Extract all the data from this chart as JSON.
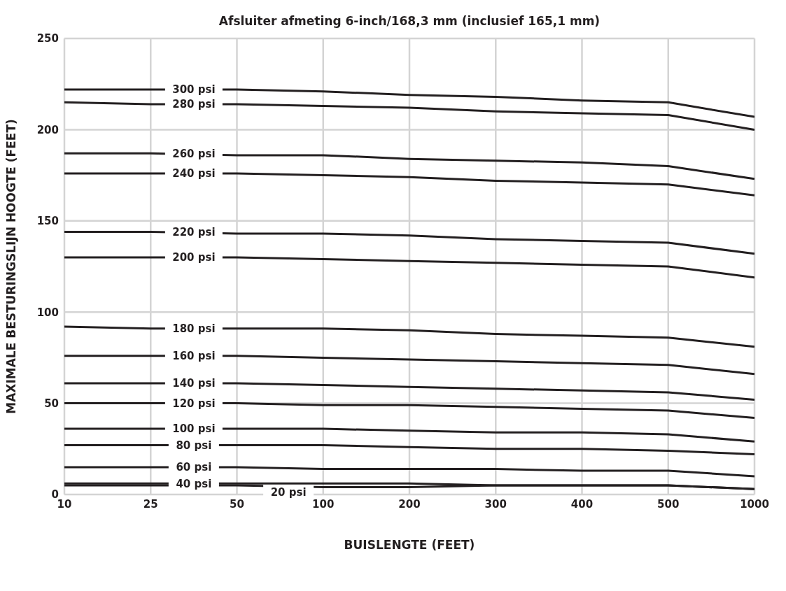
{
  "chart_data": {
    "type": "line",
    "title": "Afsluiter afmeting 6-inch/168,3 mm (inclusief 165,1 mm)",
    "xlabel": "BUISLENGTE (FEET)",
    "ylabel": "MAXIMALE BESTURINGSLIJN HOOGTE (FEET)",
    "categories": [
      "10",
      "25",
      "50",
      "100",
      "200",
      "300",
      "400",
      "500",
      "1000"
    ],
    "ylim": [
      0,
      250
    ],
    "yticks": [
      0,
      50,
      100,
      150,
      200,
      250
    ],
    "grid": true,
    "legend": false,
    "marker": "none",
    "line_style": "solid",
    "series": [
      {
        "name": "300 psi",
        "color": "#231f20",
        "values": [
          222,
          222,
          222,
          221,
          219,
          218,
          216,
          215,
          207
        ]
      },
      {
        "name": "280 psi",
        "color": "#231f20",
        "values": [
          215,
          214,
          214,
          213,
          212,
          210,
          209,
          208,
          200
        ]
      },
      {
        "name": "260 psi",
        "color": "#231f20",
        "values": [
          187,
          187,
          186,
          186,
          184,
          183,
          182,
          180,
          173
        ]
      },
      {
        "name": "240 psi",
        "color": "#231f20",
        "values": [
          176,
          176,
          176,
          175,
          174,
          172,
          171,
          170,
          164
        ]
      },
      {
        "name": "220 psi",
        "color": "#231f20",
        "values": [
          144,
          144,
          143,
          143,
          142,
          140,
          139,
          138,
          132
        ]
      },
      {
        "name": "200 psi",
        "color": "#231f20",
        "values": [
          130,
          130,
          130,
          129,
          128,
          127,
          126,
          125,
          119
        ]
      },
      {
        "name": "180 psi",
        "color": "#231f20",
        "values": [
          92,
          91,
          91,
          91,
          90,
          88,
          87,
          86,
          81
        ]
      },
      {
        "name": "160 psi",
        "color": "#231f20",
        "values": [
          76,
          76,
          76,
          75,
          74,
          73,
          72,
          71,
          66
        ]
      },
      {
        "name": "140 psi",
        "color": "#231f20",
        "values": [
          61,
          61,
          61,
          60,
          59,
          58,
          57,
          56,
          52
        ]
      },
      {
        "name": "120 psi",
        "color": "#231f20",
        "values": [
          50,
          50,
          50,
          49,
          49,
          48,
          47,
          46,
          42
        ]
      },
      {
        "name": "100 psi",
        "color": "#231f20",
        "values": [
          36,
          36,
          36,
          36,
          35,
          34,
          34,
          33,
          29
        ]
      },
      {
        "name": "80 psi",
        "color": "#231f20",
        "values": [
          27,
          27,
          27,
          27,
          26,
          25,
          25,
          24,
          22
        ]
      },
      {
        "name": "60 psi",
        "color": "#231f20",
        "values": [
          15,
          15,
          15,
          14,
          14,
          14,
          13,
          13,
          10
        ]
      },
      {
        "name": "40 psi",
        "color": "#231f20",
        "values": [
          6,
          6,
          6,
          6,
          6,
          5,
          5,
          5,
          3
        ]
      },
      {
        "name": "20 psi",
        "color": "#231f20",
        "values": [
          5,
          5,
          5,
          4,
          4,
          5,
          5,
          5,
          3
        ]
      }
    ]
  }
}
